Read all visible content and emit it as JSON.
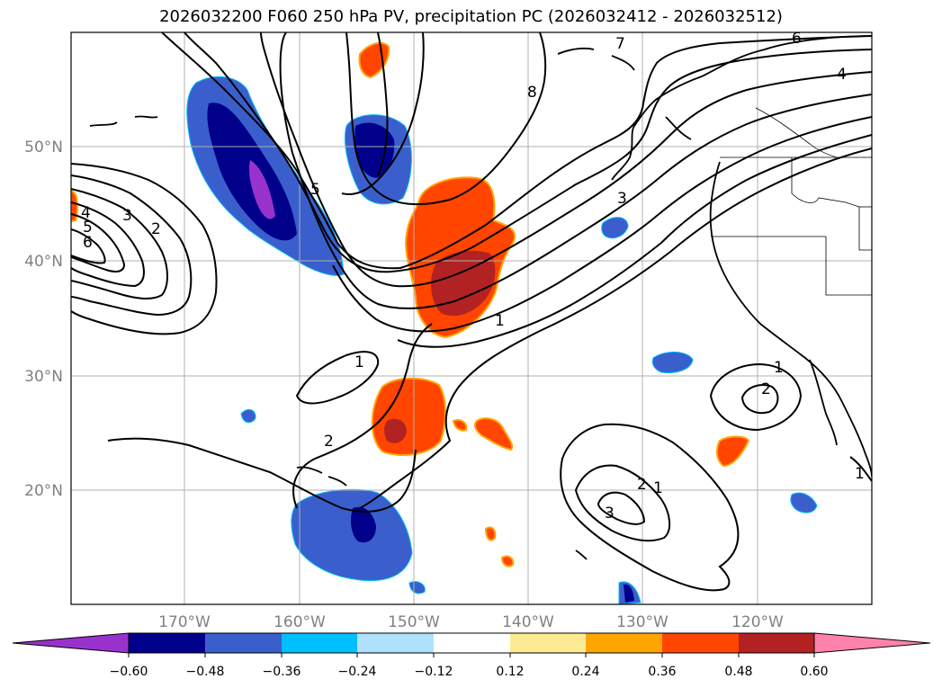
{
  "title": "2026032200 F060 250 hPa PV, precipitation PC (2026032412 - 2026032512)",
  "map": {
    "lat_labels": [
      "50°N",
      "40°N",
      "30°N",
      "20°N"
    ],
    "lon_labels": [
      "170°W",
      "160°W",
      "150°W",
      "140°W",
      "130°W",
      "120°W"
    ]
  },
  "contour_labels": [
    "6",
    "4",
    "7",
    "8",
    "5",
    "3",
    "4",
    "3",
    "2",
    "5",
    "6",
    "1",
    "1",
    "2",
    "1",
    "2",
    "2",
    "1",
    "3",
    "1"
  ],
  "colorbar": {
    "colors": [
      "#9932cc",
      "#00008b",
      "#3a5fcd",
      "#00bfff",
      "#b0e2ff",
      "#ffffff",
      "#fdeb94",
      "#ffa500",
      "#ff4500",
      "#b22222",
      "#ff82ab"
    ],
    "ticks": [
      "−0.60",
      "−0.48",
      "−0.36",
      "−0.24",
      "−0.12",
      "0.12",
      "0.24",
      "0.36",
      "0.48",
      "0.60"
    ]
  }
}
